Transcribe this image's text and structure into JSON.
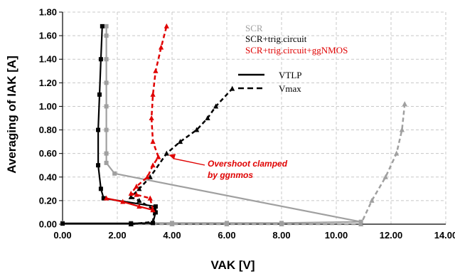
{
  "chart_data": {
    "type": "line",
    "title": "",
    "xlabel": "VAK [V]",
    "ylabel": "Averaging of IAK [A]",
    "xlim": [
      0,
      14
    ],
    "ylim": [
      0,
      1.8
    ],
    "xticks": [
      "0.00",
      "2.00",
      "4.00",
      "6.00",
      "8.00",
      "10.00",
      "12.00",
      "14.00"
    ],
    "yticks": [
      "0.00",
      "0.20",
      "0.40",
      "0.60",
      "0.80",
      "1.00",
      "1.20",
      "1.40",
      "1.60",
      "1.80"
    ],
    "grid": true,
    "legend_series": [
      {
        "label": "SCR",
        "color": "#a0a0a0"
      },
      {
        "label": "SCR+trig.circuit",
        "color": "#000000"
      },
      {
        "label": "SCR+trig.circuit+ggNMOS",
        "color": "#e00000"
      }
    ],
    "legend_lines": [
      {
        "label": "VTLP",
        "style": "solid"
      },
      {
        "label": "Vmax",
        "style": "dashed"
      }
    ],
    "annotation": {
      "lines": [
        "Overshoot clamped",
        "by ggnmos"
      ],
      "color": "#e00000",
      "points_to": [
        3.8,
        0.6
      ]
    },
    "series": [
      {
        "color": "#a0a0a0",
        "style": "solid",
        "marker": "square",
        "points": [
          [
            0,
            0.01
          ],
          [
            2.5,
            0.01
          ],
          [
            4,
            0.01
          ],
          [
            6,
            0.01
          ],
          [
            8,
            0.01
          ],
          [
            10.9,
            0.02
          ],
          [
            1.9,
            0.43
          ],
          [
            1.6,
            0.52
          ],
          [
            1.6,
            0.6
          ],
          [
            1.6,
            0.8
          ],
          [
            1.6,
            1.0
          ],
          [
            1.6,
            1.2
          ],
          [
            1.6,
            1.4
          ],
          [
            1.6,
            1.6
          ],
          [
            1.6,
            1.68
          ]
        ]
      },
      {
        "color": "#a0a0a0",
        "style": "dashed",
        "marker": "triangle",
        "points": [
          [
            2.5,
            0.0
          ],
          [
            4,
            0.0
          ],
          [
            6,
            0.0
          ],
          [
            8,
            0.0
          ],
          [
            10.9,
            0.0
          ],
          [
            11.3,
            0.2
          ],
          [
            11.8,
            0.4
          ],
          [
            12.2,
            0.6
          ],
          [
            12.4,
            0.8
          ],
          [
            12.5,
            1.02
          ]
        ]
      },
      {
        "color": "#000000",
        "style": "solid",
        "marker": "square",
        "points": [
          [
            0,
            0.005
          ],
          [
            2.5,
            0.005
          ],
          [
            3.3,
            0.01
          ],
          [
            3.4,
            0.1
          ],
          [
            3.4,
            0.15
          ],
          [
            1.5,
            0.22
          ],
          [
            1.4,
            0.3
          ],
          [
            1.3,
            0.5
          ],
          [
            1.3,
            0.8
          ],
          [
            1.35,
            1.1
          ],
          [
            1.4,
            1.4
          ],
          [
            1.45,
            1.68
          ]
        ]
      },
      {
        "color": "#000000",
        "style": "dashed",
        "marker": "triangle",
        "points": [
          [
            2.5,
            0.0
          ],
          [
            3.3,
            0.02
          ],
          [
            3.35,
            0.12
          ],
          [
            2.8,
            0.2
          ],
          [
            2.5,
            0.23
          ],
          [
            2.8,
            0.3
          ],
          [
            3.2,
            0.4
          ],
          [
            3.8,
            0.6
          ],
          [
            4.3,
            0.7
          ],
          [
            4.9,
            0.8
          ],
          [
            5.3,
            0.9
          ],
          [
            5.6,
            1.0
          ],
          [
            6.2,
            1.15
          ]
        ]
      },
      {
        "color": "#e00000",
        "style": "solid",
        "marker": "triangle",
        "points": [
          [
            1.6,
            0.22
          ],
          [
            2.2,
            0.19
          ],
          [
            2.8,
            0.15
          ],
          [
            3.3,
            0.12
          ]
        ]
      },
      {
        "color": "#e00000",
        "style": "dashed",
        "marker": "triangle",
        "points": [
          [
            3.3,
            0.12
          ],
          [
            3.2,
            0.22
          ],
          [
            2.7,
            0.25
          ],
          [
            2.5,
            0.26
          ],
          [
            2.7,
            0.32
          ],
          [
            3.1,
            0.4
          ],
          [
            3.3,
            0.5
          ],
          [
            3.5,
            0.57
          ],
          [
            3.3,
            0.7
          ],
          [
            3.25,
            0.9
          ],
          [
            3.3,
            1.1
          ],
          [
            3.4,
            1.3
          ],
          [
            3.6,
            1.5
          ],
          [
            3.8,
            1.68
          ]
        ]
      }
    ]
  }
}
